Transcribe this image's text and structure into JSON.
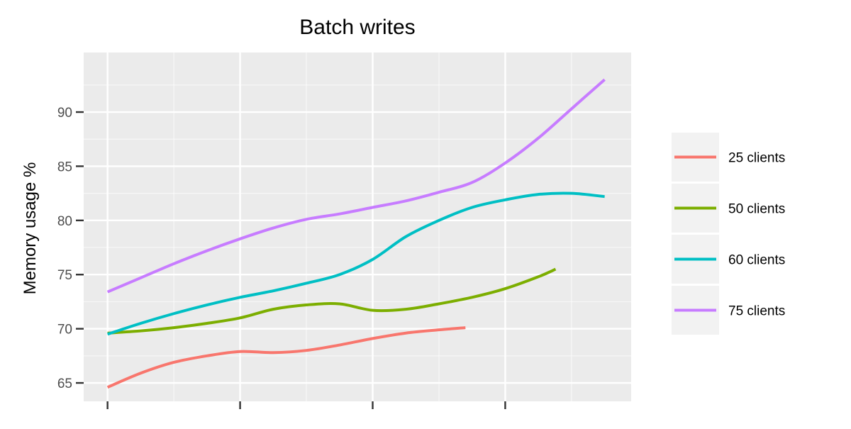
{
  "chart_data": {
    "type": "line",
    "title": "Batch writes",
    "xlabel": "",
    "ylabel": "Memory usage %",
    "x_ticks": [
      0,
      1,
      2,
      3
    ],
    "x_tick_labels": [
      "",
      "",
      "",
      ""
    ],
    "xlim": [
      -0.18,
      3.95
    ],
    "ylim": [
      63.3,
      95.5
    ],
    "y_ticks": [
      65,
      70,
      75,
      80,
      85,
      90
    ],
    "y_tick_labels": [
      "65",
      "70",
      "75",
      "80",
      "85",
      "90"
    ],
    "grid": true,
    "legend_position": "right",
    "series": [
      {
        "name": "25 clients",
        "color": "#F8766D",
        "x": [
          0,
          0.25,
          0.5,
          0.75,
          1.0,
          1.25,
          1.5,
          1.75,
          2.0,
          2.25,
          2.5,
          2.7
        ],
        "values": [
          64.6,
          65.9,
          66.9,
          67.5,
          67.9,
          67.8,
          68.0,
          68.5,
          69.1,
          69.6,
          69.9,
          70.1
        ]
      },
      {
        "name": "50 clients",
        "color": "#7CAE00",
        "x": [
          0,
          0.25,
          0.5,
          0.75,
          1.0,
          1.25,
          1.5,
          1.75,
          2.0,
          2.25,
          2.5,
          2.75,
          3.0,
          3.25,
          3.38
        ],
        "values": [
          69.6,
          69.8,
          70.1,
          70.5,
          71.0,
          71.8,
          72.2,
          72.3,
          71.7,
          71.8,
          72.3,
          72.9,
          73.7,
          74.8,
          75.5
        ]
      },
      {
        "name": "60 clients",
        "color": "#00BFC4",
        "x": [
          0,
          0.25,
          0.5,
          0.75,
          1.0,
          1.25,
          1.5,
          1.75,
          2.0,
          2.25,
          2.5,
          2.75,
          3.0,
          3.25,
          3.5,
          3.75
        ],
        "values": [
          69.5,
          70.5,
          71.4,
          72.2,
          72.9,
          73.5,
          74.2,
          75.0,
          76.4,
          78.5,
          80.0,
          81.2,
          81.9,
          82.4,
          82.5,
          82.2
        ]
      },
      {
        "name": "75 clients",
        "color": "#C77CFF",
        "x": [
          0,
          0.25,
          0.5,
          0.75,
          1.0,
          1.25,
          1.5,
          1.75,
          2.0,
          2.25,
          2.5,
          2.75,
          3.0,
          3.25,
          3.5,
          3.75
        ],
        "values": [
          73.4,
          74.7,
          76.0,
          77.2,
          78.3,
          79.3,
          80.1,
          80.6,
          81.2,
          81.8,
          82.6,
          83.5,
          85.3,
          87.6,
          90.3,
          93.0
        ]
      }
    ]
  }
}
